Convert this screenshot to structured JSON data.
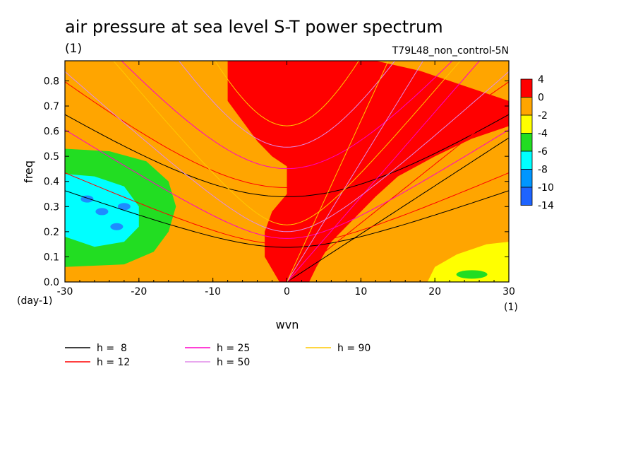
{
  "chart_data": {
    "type": "heatmap",
    "title": "air pressure at sea level S-T power spectrum",
    "subtitle_left": "(1)",
    "subtitle_right": "T79L48_non_control-5N",
    "xlabel": "wvn",
    "ylabel": "freq",
    "x_unit": "(1)",
    "y_unit": "(day-1)",
    "xlim": [
      -30,
      30
    ],
    "ylim": [
      0,
      0.88
    ],
    "xticks": [
      -30,
      -20,
      -10,
      0,
      10,
      20,
      30
    ],
    "xtick_labels": [
      "-30",
      "-20",
      "-10",
      "0",
      "10",
      "20",
      "30"
    ],
    "yticks": [
      0,
      0.1,
      0.2,
      0.3,
      0.4,
      0.5,
      0.6,
      0.7,
      0.8
    ],
    "ytick_labels": [
      "0.0",
      "0.1",
      "0.2",
      "0.3",
      "0.4",
      "0.5",
      "0.6",
      "0.7",
      "0.8"
    ],
    "colorbar": {
      "levels": [
        "4",
        "0",
        "-2",
        "-4",
        "-6",
        "-8",
        "-10",
        "-14"
      ],
      "colors": [
        "#ff0000",
        "#ffa500",
        "#ffff00",
        "#22dd22",
        "#00ffff",
        "#0096ff",
        "#1e64ff"
      ]
    },
    "regions": [
      {
        "name": "red-eastward-band",
        "color": "#ff0000",
        "approx_level": "0 to 4",
        "wvn_range": [
          -8,
          30
        ],
        "freq_range": [
          0,
          0.88
        ]
      },
      {
        "name": "green-west-low",
        "color": "#22dd22",
        "approx_level": "-6 to -4",
        "wvn_range": [
          -30,
          -16
        ],
        "freq_range": [
          0.07,
          0.52
        ]
      },
      {
        "name": "cyan-west-low",
        "color": "#00ffff",
        "approx_level": "-8 to -6",
        "wvn_range": [
          -30,
          -20
        ],
        "freq_range": [
          0.12,
          0.42
        ]
      },
      {
        "name": "yellow-east-low",
        "color": "#ffff00",
        "approx_level": "-4 to -2",
        "wvn_range": [
          19,
          30
        ],
        "freq_range": [
          0,
          0.16
        ]
      }
    ],
    "series": [
      {
        "name": "h =  8",
        "color": "#000000"
      },
      {
        "name": "h = 12",
        "color": "#ff0000"
      },
      {
        "name": "h = 25",
        "color": "#ff00c8"
      },
      {
        "name": "h = 50",
        "color": "#e08ce8"
      },
      {
        "name": "h = 90",
        "color": "#ffc800"
      }
    ]
  }
}
